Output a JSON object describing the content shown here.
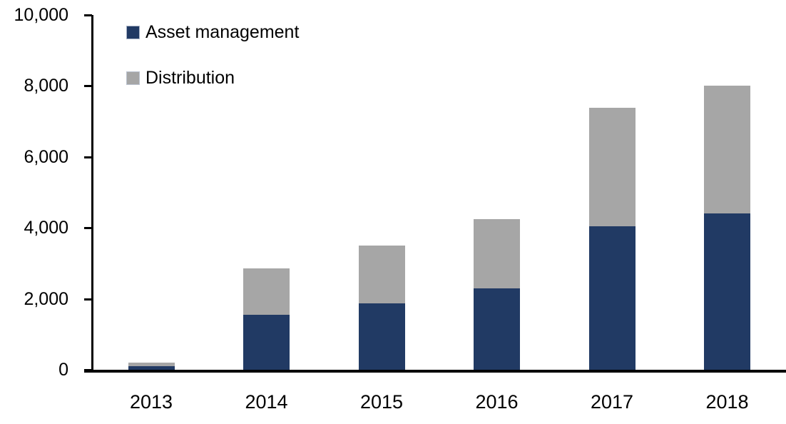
{
  "chart_data": {
    "type": "bar",
    "stacked": true,
    "title": "",
    "xlabel": "",
    "ylabel": "",
    "categories": [
      "2013",
      "2014",
      "2015",
      "2016",
      "2017",
      "2018"
    ],
    "series": [
      {
        "name": "Asset management",
        "color": "#213A64",
        "values": [
          100,
          1540,
          1880,
          2300,
          4040,
          4410
        ]
      },
      {
        "name": "Distribution",
        "color": "#A6A6A6",
        "values": [
          100,
          1320,
          1620,
          1950,
          3340,
          3590
        ]
      }
    ],
    "totals": [
      200,
      2860,
      3500,
      4250,
      7380,
      8000
    ],
    "ylim": [
      0,
      10000
    ],
    "y_tick_step": 2000,
    "y_tick_labels": [
      "0",
      "2,000",
      "4,000",
      "6,000",
      "8,000",
      "10,000"
    ],
    "grid": false,
    "legend_position": "top-left-inside",
    "axis_color": "#000000",
    "text_color": "#000000"
  }
}
